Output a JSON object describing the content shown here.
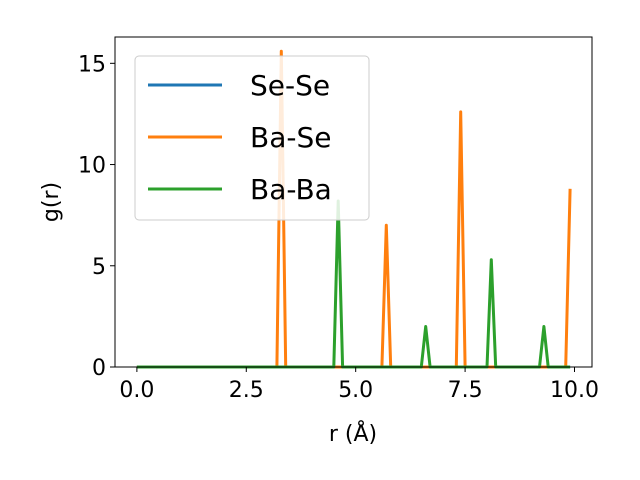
{
  "chart_data": {
    "type": "line",
    "xlabel": "r (Å)",
    "ylabel": "g(r)",
    "xlim": [
      -0.5,
      10.4
    ],
    "ylim": [
      0,
      16.3
    ],
    "xticks": [
      0.0,
      2.5,
      5.0,
      7.5,
      10.0
    ],
    "xtick_labels": [
      "0.0",
      "2.5",
      "5.0",
      "7.5",
      "10.0"
    ],
    "yticks": [
      0,
      5,
      10,
      15
    ],
    "ytick_labels": [
      "0",
      "5",
      "10",
      "15"
    ],
    "grid": false,
    "legend_position": "upper-left",
    "series": [
      {
        "name": "Se-Se",
        "color": "#1f77b4",
        "x": [
          0.0,
          9.9
        ],
        "y": [
          0,
          0
        ]
      },
      {
        "name": "Ba-Se",
        "color": "#ff7f0e",
        "x": [
          0.0,
          3.2,
          3.3,
          3.4,
          5.6,
          5.7,
          5.8,
          7.3,
          7.4,
          7.5,
          9.8,
          9.9
        ],
        "y": [
          0,
          0,
          15.6,
          0,
          0,
          7.0,
          0,
          0,
          12.6,
          0,
          0,
          8.8
        ]
      },
      {
        "name": "Ba-Ba",
        "color": "#2ca02c",
        "x": [
          0.0,
          4.5,
          4.6,
          4.7,
          6.5,
          6.6,
          6.7,
          8.0,
          8.1,
          8.2,
          9.2,
          9.3,
          9.4,
          9.9
        ],
        "y": [
          0,
          0,
          8.2,
          0,
          0,
          2.0,
          0,
          0,
          5.3,
          0,
          0,
          2.0,
          0,
          0
        ]
      }
    ]
  }
}
